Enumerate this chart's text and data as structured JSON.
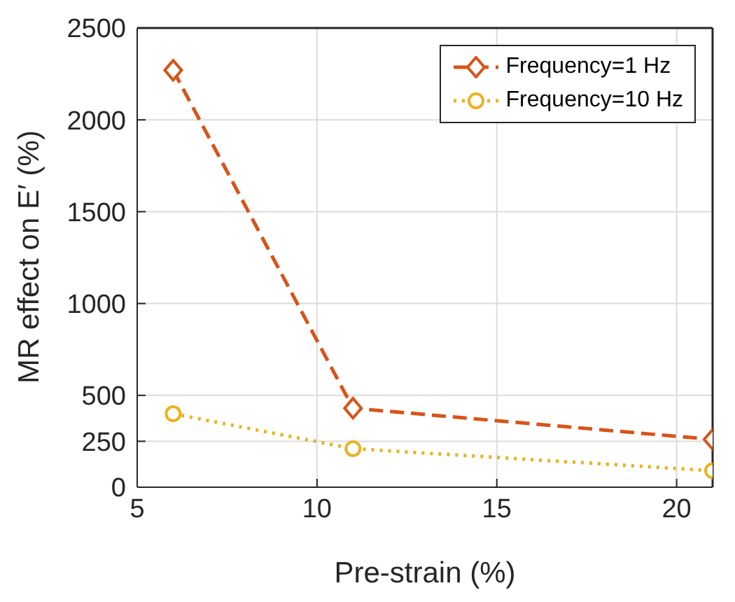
{
  "chart_data": {
    "type": "line",
    "xlabel": "Pre-strain (%)",
    "ylabel": "MR effect on E′ (%)",
    "x": [
      6,
      11,
      21
    ],
    "series": [
      {
        "name": "Frequency=1 Hz",
        "color": "#d95319",
        "values": [
          2270,
          430,
          260
        ],
        "marker": "diamond",
        "line_style": "dashed"
      },
      {
        "name": "Frequency=10 Hz",
        "color": "#edb120",
        "values": [
          400,
          210,
          90
        ],
        "marker": "circle",
        "line_style": "dotted"
      }
    ],
    "xlim": [
      5,
      21
    ],
    "xticks": [
      5,
      10,
      15,
      20
    ],
    "ylim": [
      0,
      2500
    ],
    "yticks": [
      0,
      250,
      500,
      1000,
      1500,
      2000,
      2500
    ],
    "grid": true,
    "legend": "top right"
  }
}
